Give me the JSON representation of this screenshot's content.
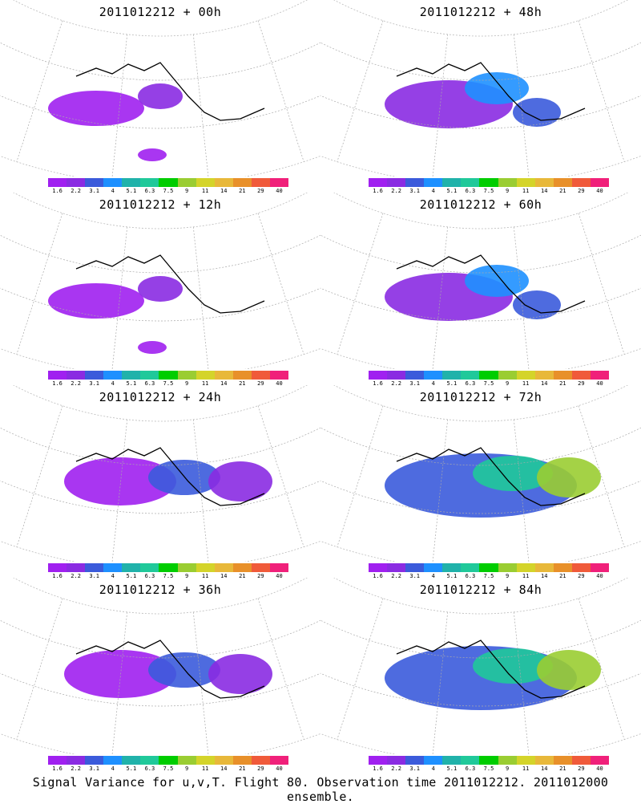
{
  "panels": [
    {
      "title": "2011012212 + 00h",
      "level": 1
    },
    {
      "title": "2011012212 + 48h",
      "level": 3
    },
    {
      "title": "2011012212 + 12h",
      "level": 1
    },
    {
      "title": "2011012212 + 60h",
      "level": 3
    },
    {
      "title": "2011012212 + 24h",
      "level": 2
    },
    {
      "title": "2011012212 + 72h",
      "level": 4
    },
    {
      "title": "2011012212 + 36h",
      "level": 2
    },
    {
      "title": "2011012212 + 84h",
      "level": 4
    }
  ],
  "colorbar": {
    "colors": [
      "#a020f0",
      "#8a2be2",
      "#3b5bdb",
      "#1e90ff",
      "#20b2aa",
      "#20c99a",
      "#00cd00",
      "#9acd32",
      "#d4d42a",
      "#e8b83a",
      "#e8902a",
      "#f05a3a",
      "#f0207a"
    ],
    "labels": [
      "1.6",
      "2.2",
      "3.1",
      "4",
      "5.1",
      "6.3",
      "7.5",
      "9",
      "11",
      "14",
      "21",
      "29",
      "40"
    ]
  },
  "caption": "Signal Variance for u,v,T. Flight 80. Observation time 2011012212. 2011012000 ensemble."
}
